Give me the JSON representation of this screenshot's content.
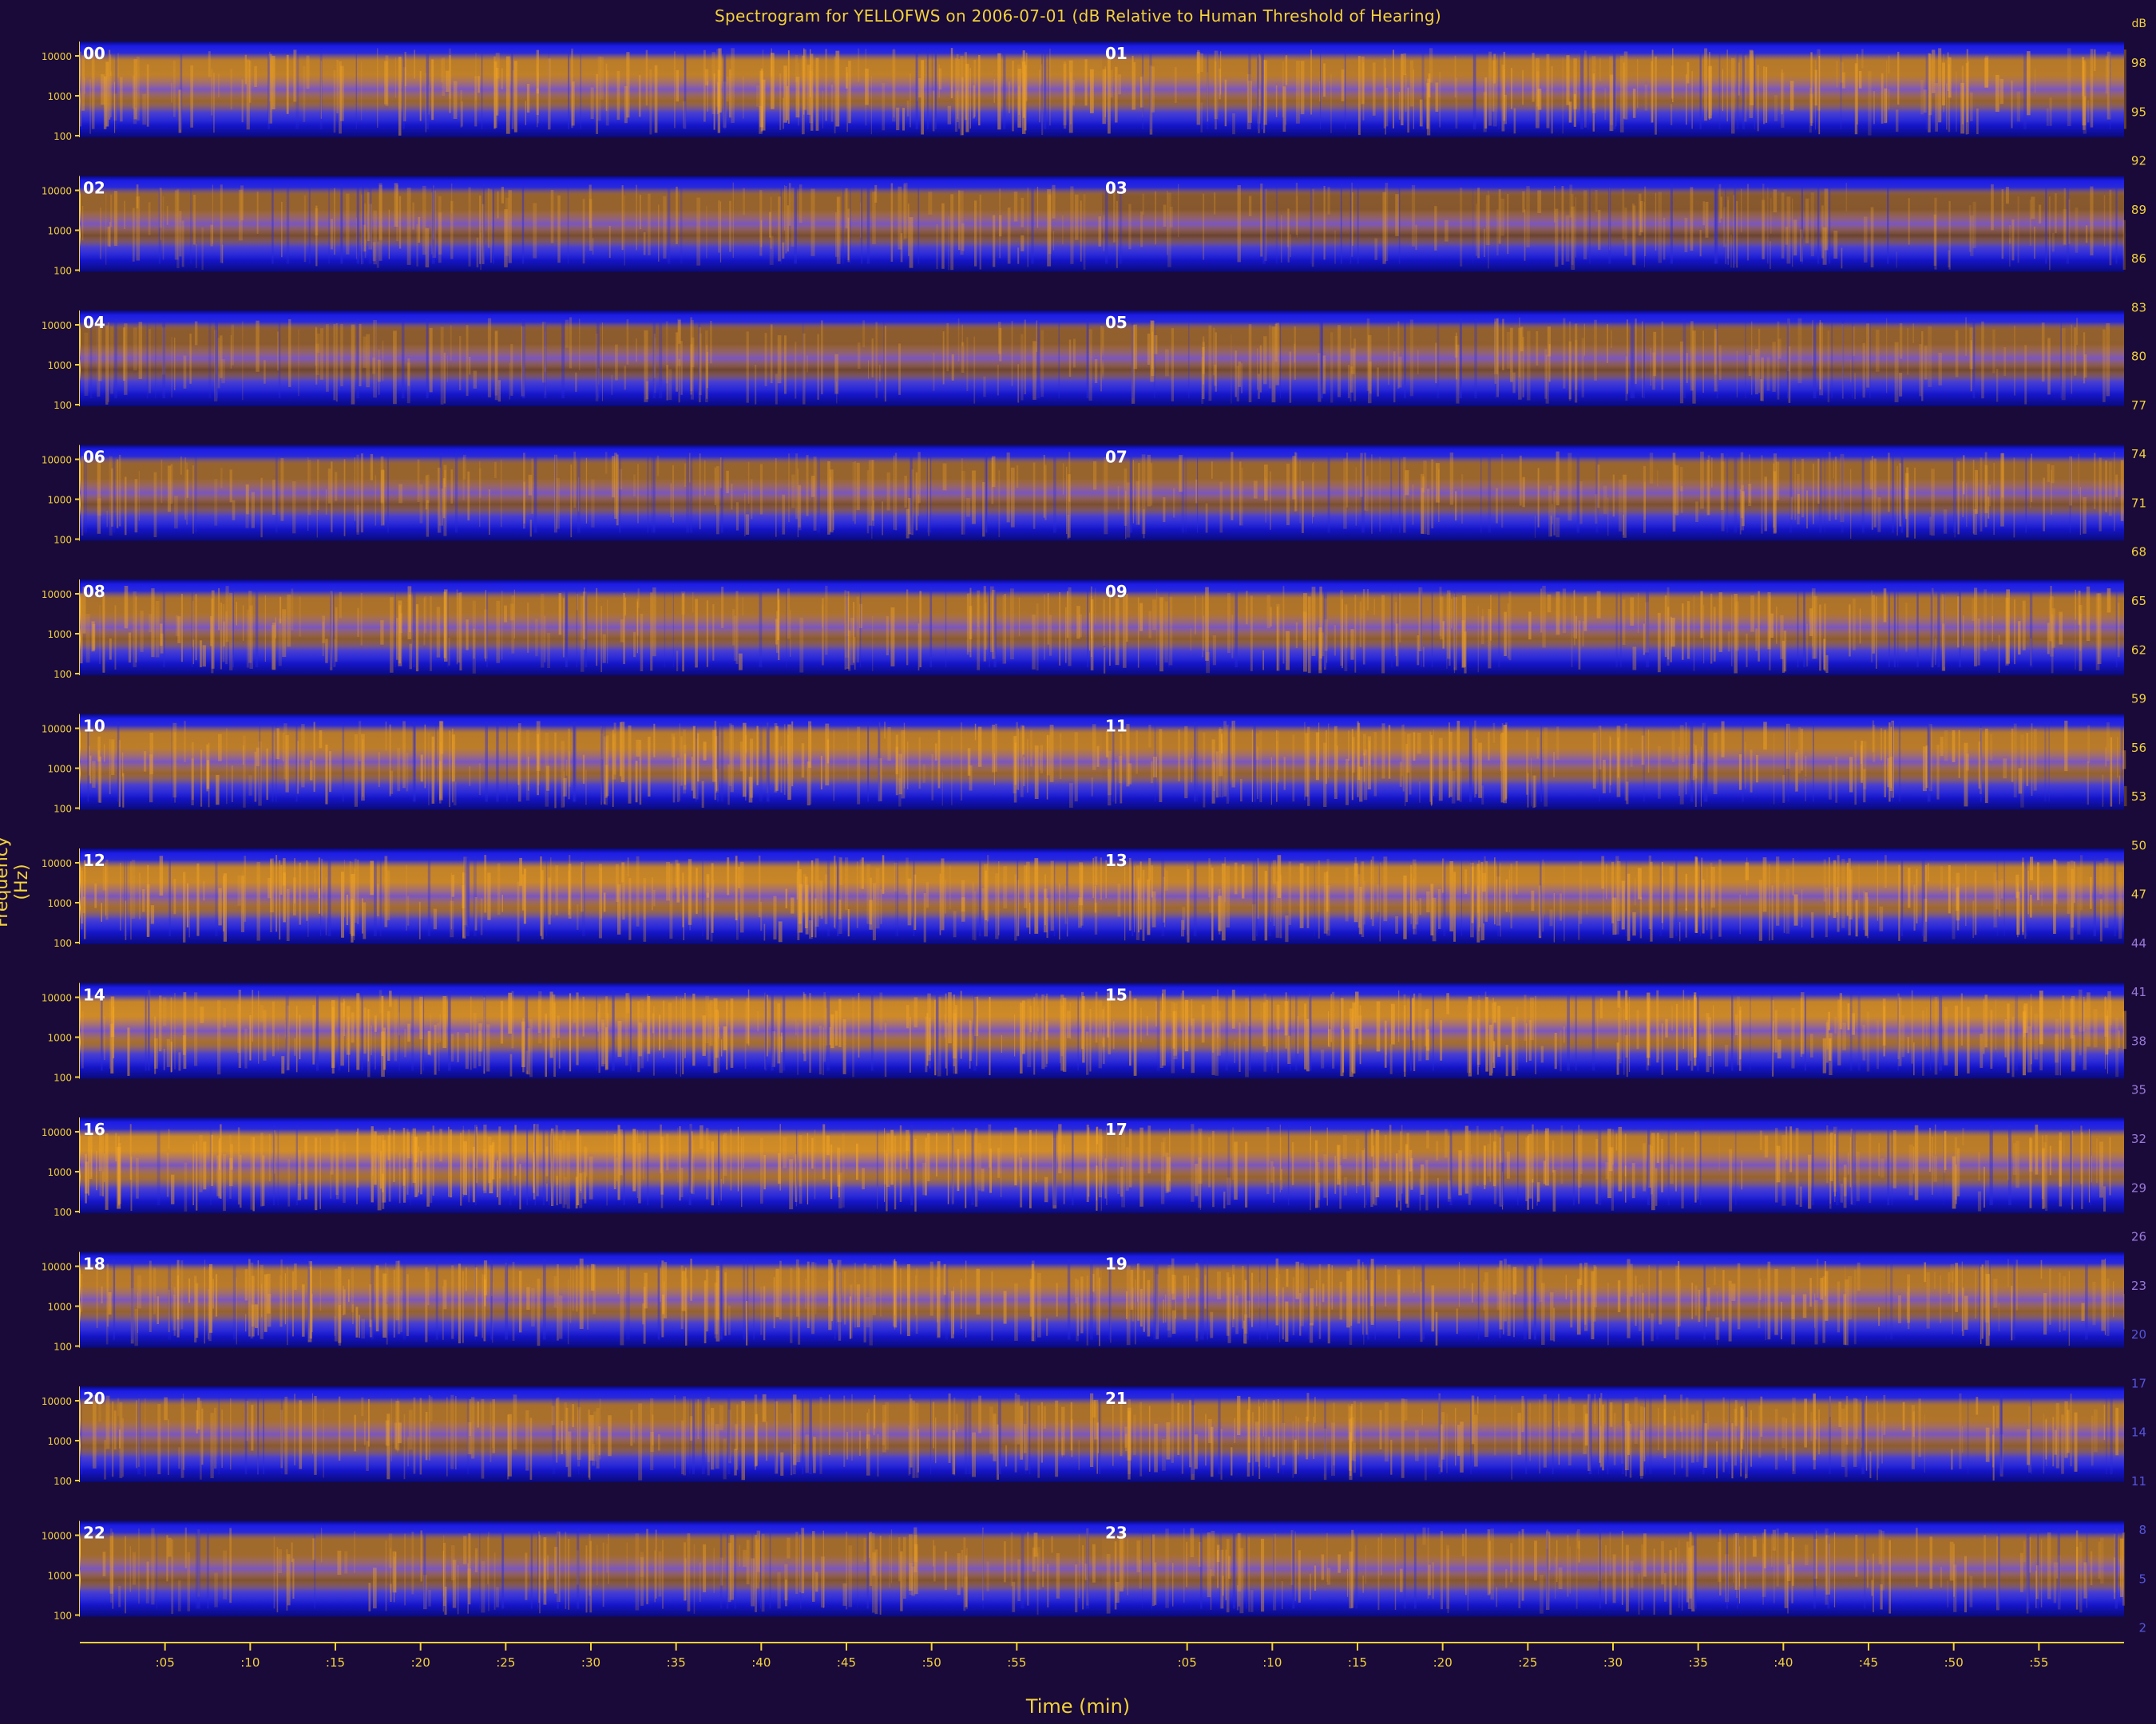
{
  "chart_data": {
    "type": "heatmap",
    "title": "Spectrogram for YELLOFWS on 2006-07-01 (dB Relative to Human Threshold of Hearing)",
    "xlabel": "Time (min)",
    "ylabel": "Frequency (Hz)",
    "x_tick_labels": [
      ":05",
      ":10",
      ":15",
      ":20",
      ":25",
      ":30",
      ":35",
      ":40",
      ":45",
      ":50",
      ":55"
    ],
    "y_tick_labels": [
      "10000",
      "1000",
      "100"
    ],
    "hour_labels": [
      "00",
      "01",
      "02",
      "03",
      "04",
      "05",
      "06",
      "07",
      "08",
      "09",
      "10",
      "11",
      "12",
      "13",
      "14",
      "15",
      "16",
      "17",
      "18",
      "19",
      "20",
      "21",
      "22",
      "23"
    ],
    "hour_intensity": [
      0.72,
      0.68,
      0.45,
      0.35,
      0.38,
      0.42,
      0.46,
      0.48,
      0.6,
      0.62,
      0.7,
      0.68,
      0.78,
      0.76,
      0.82,
      0.8,
      0.84,
      0.7,
      0.68,
      0.64,
      0.58,
      0.62,
      0.52,
      0.56
    ],
    "colorbar": {
      "label": "dB",
      "ticks": [
        "98",
        "95",
        "92",
        "89",
        "86",
        "83",
        "80",
        "77",
        "74",
        "71",
        "68",
        "65",
        "62",
        "59",
        "56",
        "53",
        "50",
        "47",
        "44",
        "41",
        "38",
        "35",
        "32",
        "29",
        "26",
        "23",
        "20",
        "17",
        "14",
        "11",
        "8",
        "5",
        "2"
      ]
    },
    "colors": {
      "background": "#1a0a3a",
      "text": "#f2d23a",
      "low": "#0a0a7a",
      "mid": "#2a2ad8",
      "high": "#f5a623",
      "axis": "#f2d23a"
    }
  }
}
